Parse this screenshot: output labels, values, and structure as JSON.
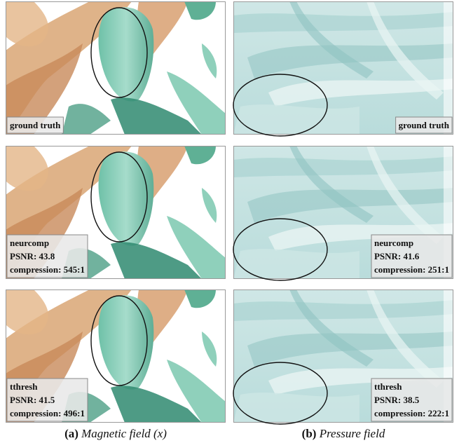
{
  "columns": [
    {
      "caption_label": "(a)",
      "caption_title": "Magnetic field (x)",
      "panels": [
        {
          "lines": [
            "ground truth"
          ]
        },
        {
          "lines": [
            "neurcomp",
            "PSNR: 43.8",
            "compression: 545:1"
          ]
        },
        {
          "lines": [
            "tthresh",
            "PSNR: 41.5",
            "compression: 496:1"
          ]
        }
      ]
    },
    {
      "caption_label": "(b)",
      "caption_title": "Pressure field",
      "panels": [
        {
          "lines": [
            "ground truth"
          ]
        },
        {
          "lines": [
            "neurcomp",
            "PSNR: 41.6",
            "compression: 251:1"
          ]
        },
        {
          "lines": [
            "tthresh",
            "PSNR: 38.5",
            "compression: 222:1"
          ]
        }
      ]
    }
  ]
}
